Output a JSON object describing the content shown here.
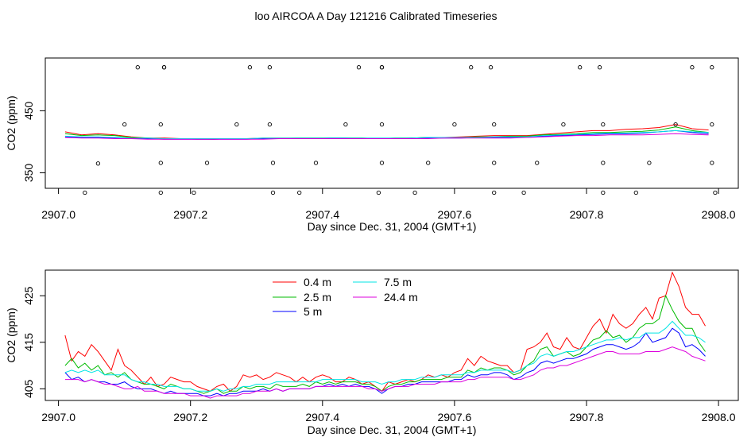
{
  "page_title": "loo AIRCOA A  Day 121216  Calibrated Timeseries",
  "colors": {
    "0.4 m": "#ff0000",
    "2.5 m": "#00bb00",
    "5 m": "#0000ff",
    "7.5 m": "#00e5e5",
    "24.4 m": "#dd00dd"
  },
  "chart_data": [
    {
      "type": "line",
      "title": "loo AIRCOA A  Day 121216  Calibrated Timeseries",
      "xlabel": "Day since Dec. 31, 2004 (GMT+1)",
      "ylabel": "CO2 (ppm)",
      "xlim": [
        2906.98,
        2908.03
      ],
      "ylim": [
        325,
        535
      ],
      "xticks": [
        "2907.0",
        "2907.2",
        "2907.4",
        "2907.6",
        "2907.8",
        "2908.0"
      ],
      "yticks": [
        "350",
        "450"
      ],
      "x": [
        2907.01,
        2907.035,
        2907.06,
        2907.085,
        2907.11,
        2907.135,
        2907.16,
        2907.185,
        2907.21,
        2907.235,
        2907.26,
        2907.285,
        2907.31,
        2907.335,
        2907.36,
        2907.385,
        2907.41,
        2907.435,
        2907.46,
        2907.485,
        2907.51,
        2907.535,
        2907.56,
        2907.585,
        2907.61,
        2907.635,
        2907.66,
        2907.685,
        2907.71,
        2907.735,
        2907.76,
        2907.785,
        2907.81,
        2907.835,
        2907.86,
        2907.885,
        2907.91,
        2907.935,
        2907.96,
        2907.985
      ],
      "series": [
        {
          "values": [
            416,
            411,
            413,
            411,
            408,
            406,
            406,
            405,
            405,
            404,
            405,
            405,
            406,
            406,
            406,
            406,
            406,
            406,
            406,
            405,
            406,
            406,
            407,
            407,
            408,
            409,
            410,
            410,
            410,
            412,
            414,
            416,
            418,
            418,
            420,
            421,
            423,
            428,
            421,
            419
          ]
        },
        {
          "values": [
            413,
            410,
            411,
            410,
            407,
            406,
            405,
            405,
            404,
            404,
            405,
            405,
            405,
            405,
            406,
            406,
            406,
            406,
            406,
            405,
            406,
            406,
            407,
            407,
            407,
            408,
            408,
            409,
            409,
            411,
            412,
            413,
            415,
            415,
            416,
            417,
            419,
            424,
            418,
            415
          ]
        },
        {
          "values": [
            408,
            407,
            407,
            406,
            405,
            405,
            404,
            404,
            404,
            404,
            404,
            404,
            405,
            405,
            405,
            405,
            406,
            406,
            405,
            405,
            405,
            406,
            406,
            406,
            406,
            407,
            407,
            407,
            407,
            409,
            410,
            411,
            412,
            413,
            413,
            414,
            416,
            418,
            415,
            413
          ]
        },
        {
          "values": [
            409,
            408,
            408,
            407,
            406,
            406,
            405,
            405,
            405,
            405,
            405,
            405,
            406,
            406,
            406,
            406,
            406,
            406,
            406,
            406,
            406,
            406,
            407,
            407,
            407,
            407,
            408,
            408,
            408,
            410,
            411,
            412,
            413,
            414,
            414,
            415,
            416,
            418,
            416,
            415
          ]
        },
        {
          "values": [
            407,
            406,
            406,
            405,
            405,
            404,
            404,
            404,
            404,
            404,
            404,
            404,
            404,
            405,
            405,
            405,
            405,
            405,
            405,
            405,
            405,
            405,
            405,
            406,
            406,
            406,
            406,
            406,
            407,
            408,
            409,
            410,
            410,
            411,
            411,
            411,
            412,
            413,
            412,
            411
          ]
        }
      ],
      "markers": {
        "x": [
          2907.04,
          2907.06,
          2907.1,
          2907.12,
          2907.155,
          2907.155,
          2907.155,
          2907.16,
          2907.16,
          2907.205,
          2907.225,
          2907.27,
          2907.29,
          2907.32,
          2907.32,
          2907.325,
          2907.325,
          2907.365,
          2907.39,
          2907.435,
          2907.455,
          2907.485,
          2907.49,
          2907.49,
          2907.49,
          2907.49,
          2907.54,
          2907.56,
          2907.6,
          2907.625,
          2907.655,
          2907.66,
          2907.66,
          2907.66,
          2907.705,
          2907.725,
          2907.765,
          2907.79,
          2907.82,
          2907.825,
          2907.825,
          2907.825,
          2907.875,
          2907.895,
          2907.935,
          2907.96,
          2907.99,
          2907.99,
          2907.99,
          2907.995
        ],
        "y": [
          318,
          365,
          428,
          520,
          318,
          366,
          428,
          520,
          520,
          318,
          366,
          428,
          520,
          520,
          428,
          366,
          318,
          318,
          366,
          428,
          520,
          318,
          366,
          428,
          520,
          520,
          318,
          366,
          428,
          520,
          520,
          428,
          366,
          318,
          318,
          366,
          428,
          520,
          520,
          428,
          366,
          318,
          318,
          366,
          428,
          520,
          520,
          428,
          366,
          318
        ]
      }
    },
    {
      "type": "line",
      "title": "",
      "xlabel": "Day since Dec. 31, 2004 (GMT+1)",
      "ylabel": "CO2 (ppm)",
      "xlim": [
        2906.98,
        2908.03
      ],
      "ylim": [
        402.5,
        430.5
      ],
      "xticks": [
        "2907.0",
        "2907.2",
        "2907.4",
        "2907.6",
        "2907.8",
        "2908.0"
      ],
      "yticks": [
        "405",
        "415",
        "425"
      ],
      "legend": [
        "0.4 m",
        "2.5 m",
        "5 m",
        "7.5 m",
        "24.4 m"
      ],
      "x": [
        2907.01,
        2907.02,
        2907.03,
        2907.04,
        2907.05,
        2907.06,
        2907.07,
        2907.08,
        2907.09,
        2907.1,
        2907.11,
        2907.12,
        2907.13,
        2907.14,
        2907.15,
        2907.16,
        2907.17,
        2907.18,
        2907.19,
        2907.2,
        2907.21,
        2907.22,
        2907.23,
        2907.24,
        2907.25,
        2907.26,
        2907.27,
        2907.28,
        2907.29,
        2907.3,
        2907.31,
        2907.32,
        2907.33,
        2907.34,
        2907.35,
        2907.36,
        2907.37,
        2907.38,
        2907.39,
        2907.4,
        2907.41,
        2907.42,
        2907.43,
        2907.44,
        2907.45,
        2907.46,
        2907.47,
        2907.48,
        2907.49,
        2907.5,
        2907.51,
        2907.52,
        2907.53,
        2907.54,
        2907.55,
        2907.56,
        2907.57,
        2907.58,
        2907.59,
        2907.6,
        2907.61,
        2907.62,
        2907.63,
        2907.64,
        2907.65,
        2907.66,
        2907.67,
        2907.68,
        2907.69,
        2907.7,
        2907.71,
        2907.72,
        2907.73,
        2907.74,
        2907.75,
        2907.76,
        2907.77,
        2907.78,
        2907.79,
        2907.8,
        2907.81,
        2907.82,
        2907.83,
        2907.84,
        2907.85,
        2907.86,
        2907.87,
        2907.88,
        2907.89,
        2907.9,
        2907.91,
        2907.92,
        2907.93,
        2907.94,
        2907.95,
        2907.96,
        2907.97,
        2907.98
      ],
      "series": [
        {
          "name": "0.4 m",
          "values": [
            416.5,
            411.0,
            413.0,
            412.0,
            414.5,
            413.0,
            411.0,
            409.0,
            413.5,
            410.0,
            409.0,
            407.5,
            406.0,
            407.5,
            405.5,
            406.0,
            407.5,
            407.0,
            406.5,
            406.5,
            405.5,
            405.0,
            404.5,
            405.5,
            406.0,
            404.5,
            405.5,
            408.0,
            407.5,
            408.0,
            407.0,
            407.5,
            408.5,
            408.0,
            407.5,
            406.5,
            407.5,
            406.5,
            407.5,
            408.0,
            407.5,
            406.5,
            406.5,
            407.5,
            407.0,
            406.0,
            406.5,
            405.5,
            404.5,
            406.5,
            406.0,
            406.5,
            407.0,
            406.5,
            407.0,
            408.0,
            407.5,
            408.0,
            407.5,
            408.5,
            409.0,
            411.5,
            410.0,
            412.0,
            411.0,
            410.5,
            410.0,
            410.0,
            408.5,
            409.0,
            413.5,
            414.0,
            415.0,
            417.0,
            414.0,
            413.5,
            416.0,
            414.0,
            413.5,
            416.0,
            418.5,
            420.0,
            417.0,
            421.0,
            419.0,
            418.0,
            419.0,
            421.0,
            422.5,
            420.0,
            424.5,
            425.0,
            430.0,
            427.0,
            422.5,
            421.0,
            421.0,
            418.5
          ]
        },
        {
          "name": "2.5 m",
          "values": [
            410.0,
            411.5,
            409.5,
            410.5,
            409.0,
            410.0,
            408.0,
            408.5,
            407.5,
            408.5,
            407.0,
            406.5,
            406.0,
            406.0,
            405.5,
            405.0,
            406.0,
            405.5,
            405.0,
            405.0,
            404.5,
            404.0,
            404.5,
            405.0,
            404.0,
            404.5,
            404.5,
            405.5,
            405.0,
            405.5,
            405.5,
            405.0,
            406.0,
            405.5,
            405.5,
            405.5,
            406.0,
            405.5,
            406.5,
            406.0,
            406.5,
            406.0,
            406.5,
            406.5,
            406.5,
            406.0,
            406.0,
            405.5,
            404.5,
            405.5,
            406.0,
            406.0,
            406.5,
            406.5,
            407.0,
            407.0,
            407.0,
            407.0,
            407.5,
            407.5,
            407.5,
            409.0,
            408.5,
            409.5,
            409.0,
            409.5,
            409.5,
            409.0,
            408.0,
            408.5,
            410.0,
            411.0,
            413.5,
            414.0,
            412.0,
            412.5,
            413.0,
            412.0,
            412.5,
            414.0,
            415.5,
            416.0,
            417.5,
            416.0,
            416.5,
            415.0,
            416.0,
            418.0,
            419.0,
            419.0,
            420.0,
            425.0,
            422.0,
            419.5,
            418.0,
            418.0,
            415.0,
            413.0
          ]
        },
        {
          "name": "5 m",
          "values": [
            408.5,
            407.0,
            407.5,
            406.5,
            407.0,
            406.5,
            406.5,
            406.0,
            406.0,
            406.5,
            405.5,
            405.0,
            405.0,
            405.0,
            404.5,
            404.0,
            404.5,
            404.0,
            404.0,
            404.0,
            404.0,
            403.5,
            403.5,
            404.0,
            403.5,
            404.0,
            404.0,
            404.5,
            404.5,
            404.5,
            405.0,
            404.5,
            405.0,
            404.5,
            405.0,
            405.0,
            405.0,
            405.0,
            405.5,
            405.5,
            406.0,
            405.5,
            406.0,
            405.5,
            406.0,
            405.5,
            405.5,
            405.0,
            404.0,
            405.0,
            405.5,
            405.5,
            406.0,
            406.0,
            406.5,
            406.5,
            406.5,
            406.5,
            406.5,
            407.0,
            407.0,
            408.0,
            407.5,
            408.0,
            408.0,
            408.5,
            408.5,
            408.0,
            407.0,
            407.5,
            408.5,
            409.0,
            410.5,
            411.0,
            410.5,
            411.0,
            411.5,
            411.5,
            412.0,
            412.5,
            413.5,
            414.0,
            414.5,
            414.5,
            414.0,
            413.5,
            414.0,
            415.0,
            417.0,
            415.0,
            415.5,
            416.0,
            418.0,
            417.0,
            414.0,
            414.5,
            413.5,
            412.0
          ]
        },
        {
          "name": "7.5 m",
          "values": [
            408.5,
            409.0,
            408.5,
            409.0,
            408.5,
            409.0,
            408.0,
            408.0,
            408.0,
            408.0,
            407.0,
            406.5,
            406.5,
            406.0,
            406.0,
            405.5,
            405.5,
            405.5,
            405.0,
            405.0,
            404.5,
            404.5,
            404.5,
            405.0,
            404.5,
            405.0,
            405.0,
            405.5,
            405.5,
            406.0,
            406.0,
            406.0,
            406.5,
            406.5,
            406.5,
            406.5,
            406.5,
            406.5,
            406.5,
            407.0,
            407.0,
            407.0,
            407.0,
            407.0,
            407.0,
            406.5,
            406.5,
            406.5,
            406.0,
            406.5,
            406.5,
            407.0,
            407.0,
            407.0,
            407.5,
            407.5,
            407.5,
            408.0,
            408.0,
            408.0,
            408.0,
            408.5,
            408.5,
            409.0,
            409.0,
            409.0,
            409.0,
            409.0,
            408.5,
            409.0,
            410.0,
            410.5,
            412.0,
            412.5,
            412.0,
            412.5,
            413.0,
            413.0,
            413.5,
            414.0,
            414.5,
            415.0,
            415.5,
            415.5,
            416.0,
            415.5,
            416.0,
            416.0,
            417.0,
            417.0,
            417.0,
            418.0,
            419.5,
            418.0,
            416.5,
            416.5,
            416.0,
            415.0
          ]
        },
        {
          "name": "24.4 m",
          "values": [
            407.0,
            407.0,
            407.0,
            406.5,
            407.0,
            406.5,
            406.0,
            406.0,
            405.5,
            405.0,
            405.0,
            405.5,
            404.5,
            404.5,
            404.5,
            404.0,
            404.0,
            404.0,
            404.0,
            403.5,
            403.5,
            403.5,
            403.0,
            403.5,
            403.5,
            403.5,
            403.5,
            404.0,
            404.0,
            404.5,
            404.5,
            404.5,
            405.0,
            404.5,
            405.0,
            405.0,
            405.0,
            405.0,
            405.5,
            405.5,
            405.5,
            405.5,
            405.5,
            405.5,
            405.5,
            405.5,
            405.0,
            405.0,
            404.5,
            405.0,
            405.5,
            405.5,
            405.5,
            406.0,
            406.0,
            406.0,
            406.0,
            406.5,
            406.5,
            406.5,
            406.5,
            407.0,
            407.0,
            407.5,
            407.5,
            407.5,
            407.5,
            407.5,
            407.0,
            407.0,
            407.5,
            408.0,
            409.0,
            409.5,
            409.5,
            410.0,
            410.0,
            410.5,
            411.0,
            411.5,
            412.0,
            412.5,
            413.0,
            413.0,
            412.5,
            412.5,
            412.5,
            412.5,
            413.0,
            413.0,
            413.0,
            413.5,
            414.0,
            413.5,
            413.0,
            412.0,
            411.5,
            411.0
          ]
        }
      ]
    }
  ]
}
